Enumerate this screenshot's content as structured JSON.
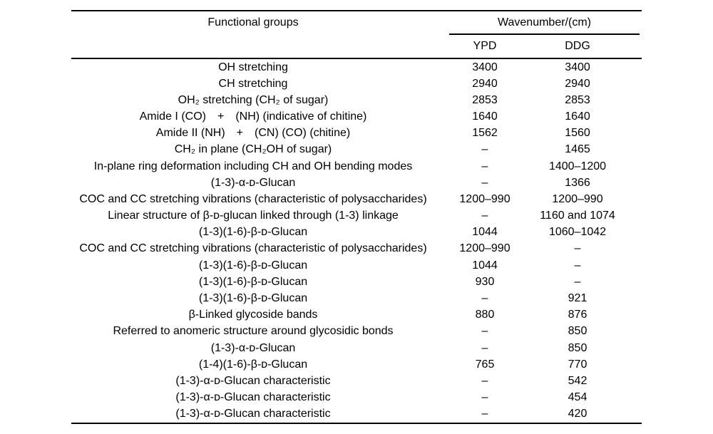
{
  "table": {
    "header": {
      "functional_groups": "Functional groups",
      "wavenumber_group": "Wavenumber/(cm)",
      "col_ypd": "YPD",
      "col_ddg": "DDG"
    },
    "rows": [
      {
        "group": "OH stretching",
        "ypd": "3400",
        "ddg": "3400"
      },
      {
        "group": "CH stretching",
        "ypd": "2940",
        "ddg": "2940"
      },
      {
        "group": "OH₂ stretching (CH₂ of sugar)",
        "ypd": "2853",
        "ddg": "2853"
      },
      {
        "group": "Amide I (CO) + (NH) (indicative of chitine)",
        "ypd": "1640",
        "ddg": "1640"
      },
      {
        "group": "Amide II (NH) + (CN) (CO) (chitine)",
        "ypd": "1562",
        "ddg": "1560"
      },
      {
        "group": "CH₂ in plane (CH₂OH of sugar)",
        "ypd": "–",
        "ddg": "1465"
      },
      {
        "group": "In-plane ring deformation including CH and OH bending modes",
        "ypd": "–",
        "ddg": "1400–1200"
      },
      {
        "group": "(1-3)-α-ᴅ-Glucan",
        "ypd": "–",
        "ddg": "1366"
      },
      {
        "group": "COC and CC stretching vibrations (characteristic of polysaccharides)",
        "ypd": "1200–990",
        "ddg": "1200–990"
      },
      {
        "group": "Linear structure of β-ᴅ-glucan linked through (1-3) linkage",
        "ypd": "–",
        "ddg": "1160 and 1074"
      },
      {
        "group": "(1-3)(1-6)-β-ᴅ-Glucan",
        "ypd": "1044",
        "ddg": "1060–1042"
      },
      {
        "group": "COC and CC stretching vibrations (characteristic of polysaccharides)",
        "ypd": "1200–990",
        "ddg": "–"
      },
      {
        "group": "(1-3)(1-6)-β-ᴅ-Glucan",
        "ypd": "1044",
        "ddg": "–"
      },
      {
        "group": "(1-3)(1-6)-β-ᴅ-Glucan",
        "ypd": "930",
        "ddg": "–"
      },
      {
        "group": "(1-3)(1-6)-β-ᴅ-Glucan",
        "ypd": "–",
        "ddg": "921"
      },
      {
        "group": "β-Linked glycoside bands",
        "ypd": "880",
        "ddg": "876"
      },
      {
        "group": "Referred to anomeric structure around glycosidic bonds",
        "ypd": "–",
        "ddg": "850"
      },
      {
        "group": "(1-3)-α-ᴅ-Glucan",
        "ypd": "–",
        "ddg": "850"
      },
      {
        "group": "(1-4)(1-6)-β-ᴅ-Glucan",
        "ypd": "765",
        "ddg": "770"
      },
      {
        "group": "(1-3)-α-ᴅ-Glucan characteristic",
        "ypd": "–",
        "ddg": "542"
      },
      {
        "group": "(1-3)-α-ᴅ-Glucan characteristic",
        "ypd": "–",
        "ddg": "454"
      },
      {
        "group": "(1-3)-α-ᴅ-Glucan characteristic",
        "ypd": "–",
        "ddg": "420"
      }
    ]
  }
}
